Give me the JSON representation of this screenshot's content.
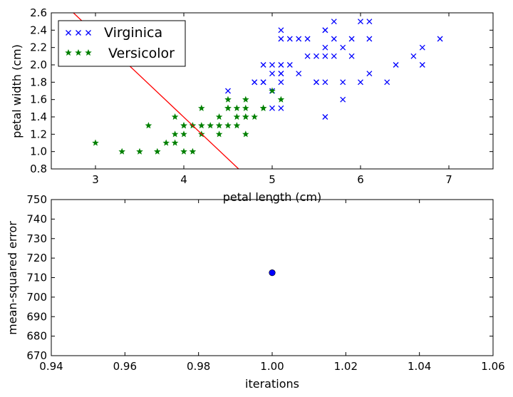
{
  "chart_data": [
    {
      "type": "scatter",
      "xlabel": "petal length (cm)",
      "ylabel": "petal width (cm)",
      "xlim": [
        2.5,
        7.5
      ],
      "ylim": [
        0.8,
        2.6
      ],
      "xticks": [
        3,
        4,
        5,
        6,
        7
      ],
      "yticks": [
        0.8,
        1.0,
        1.2,
        1.4,
        1.6,
        1.8,
        2.0,
        2.2,
        2.4,
        2.6
      ],
      "grid": false,
      "legend_position": "top-left",
      "series": [
        {
          "name": "Virginica",
          "marker": "x",
          "color": "#0000ff",
          "points": [
            [
              4.5,
              1.7
            ],
            [
              4.8,
              1.8
            ],
            [
              4.8,
              1.8
            ],
            [
              4.9,
              1.8
            ],
            [
              4.9,
              1.8
            ],
            [
              4.9,
              2.0
            ],
            [
              5.0,
              2.0
            ],
            [
              5.0,
              1.9
            ],
            [
              5.0,
              1.5
            ],
            [
              5.0,
              1.7
            ],
            [
              5.1,
              2.4
            ],
            [
              5.1,
              2.3
            ],
            [
              5.1,
              2.0
            ],
            [
              5.1,
              1.9
            ],
            [
              5.1,
              1.9
            ],
            [
              5.1,
              1.8
            ],
            [
              5.1,
              1.5
            ],
            [
              5.2,
              2.3
            ],
            [
              5.2,
              2.0
            ],
            [
              5.3,
              2.3
            ],
            [
              5.3,
              1.9
            ],
            [
              5.4,
              2.3
            ],
            [
              5.4,
              2.1
            ],
            [
              5.5,
              2.1
            ],
            [
              5.5,
              1.8
            ],
            [
              5.5,
              1.8
            ],
            [
              5.6,
              2.4
            ],
            [
              5.6,
              2.4
            ],
            [
              5.6,
              2.2
            ],
            [
              5.6,
              2.1
            ],
            [
              5.6,
              1.8
            ],
            [
              5.6,
              1.4
            ],
            [
              5.7,
              2.5
            ],
            [
              5.7,
              2.3
            ],
            [
              5.7,
              2.1
            ],
            [
              5.8,
              2.2
            ],
            [
              5.8,
              1.8
            ],
            [
              5.8,
              1.6
            ],
            [
              5.9,
              2.3
            ],
            [
              5.9,
              2.1
            ],
            [
              6.0,
              2.5
            ],
            [
              6.0,
              1.8
            ],
            [
              6.1,
              2.5
            ],
            [
              6.1,
              2.3
            ],
            [
              6.1,
              1.9
            ],
            [
              6.3,
              1.8
            ],
            [
              6.4,
              2.0
            ],
            [
              6.6,
              2.1
            ],
            [
              6.7,
              2.2
            ],
            [
              6.7,
              2.0
            ],
            [
              6.9,
              2.3
            ]
          ]
        },
        {
          "name": "Versicolor",
          "marker": "star",
          "color": "#008000",
          "points": [
            [
              3.0,
              1.1
            ],
            [
              3.3,
              1.0
            ],
            [
              3.5,
              1.0
            ],
            [
              3.6,
              1.3
            ],
            [
              3.7,
              1.0
            ],
            [
              3.8,
              1.1
            ],
            [
              3.9,
              1.4
            ],
            [
              3.9,
              1.2
            ],
            [
              3.9,
              1.1
            ],
            [
              4.0,
              1.3
            ],
            [
              4.0,
              1.3
            ],
            [
              4.0,
              1.2
            ],
            [
              4.0,
              1.0
            ],
            [
              4.1,
              1.3
            ],
            [
              4.1,
              1.0
            ],
            [
              4.2,
              1.5
            ],
            [
              4.2,
              1.3
            ],
            [
              4.2,
              1.2
            ],
            [
              4.3,
              1.3
            ],
            [
              4.4,
              1.4
            ],
            [
              4.4,
              1.3
            ],
            [
              4.4,
              1.2
            ],
            [
              4.5,
              1.6
            ],
            [
              4.5,
              1.5
            ],
            [
              4.5,
              1.5
            ],
            [
              4.5,
              1.3
            ],
            [
              4.6,
              1.5
            ],
            [
              4.6,
              1.4
            ],
            [
              4.6,
              1.3
            ],
            [
              4.7,
              1.6
            ],
            [
              4.7,
              1.5
            ],
            [
              4.7,
              1.4
            ],
            [
              4.7,
              1.4
            ],
            [
              4.7,
              1.2
            ],
            [
              4.8,
              1.4
            ],
            [
              4.9,
              1.5
            ],
            [
              4.9,
              1.5
            ],
            [
              5.0,
              1.7
            ],
            [
              5.1,
              1.6
            ]
          ]
        }
      ],
      "decision_line": {
        "color": "#ff0000",
        "points": [
          [
            2.75,
            2.6
          ],
          [
            4.62,
            0.8
          ]
        ]
      }
    },
    {
      "type": "line",
      "xlabel": "iterations",
      "ylabel": "mean-squared error",
      "xlim": [
        0.94,
        1.06
      ],
      "ylim": [
        670,
        750
      ],
      "xticks": [
        0.94,
        0.96,
        0.98,
        1.0,
        1.02,
        1.04,
        1.06
      ],
      "xtick_labels": [
        "0.94",
        "0.96",
        "0.98",
        "1.00",
        "1.02",
        "1.04",
        "1.06"
      ],
      "yticks": [
        670,
        680,
        690,
        700,
        710,
        720,
        730,
        740,
        750
      ],
      "grid": false,
      "series": [
        {
          "marker": "circle",
          "color": "#0000ff",
          "x": [
            1.0
          ],
          "y": [
            712.5
          ]
        }
      ]
    }
  ]
}
